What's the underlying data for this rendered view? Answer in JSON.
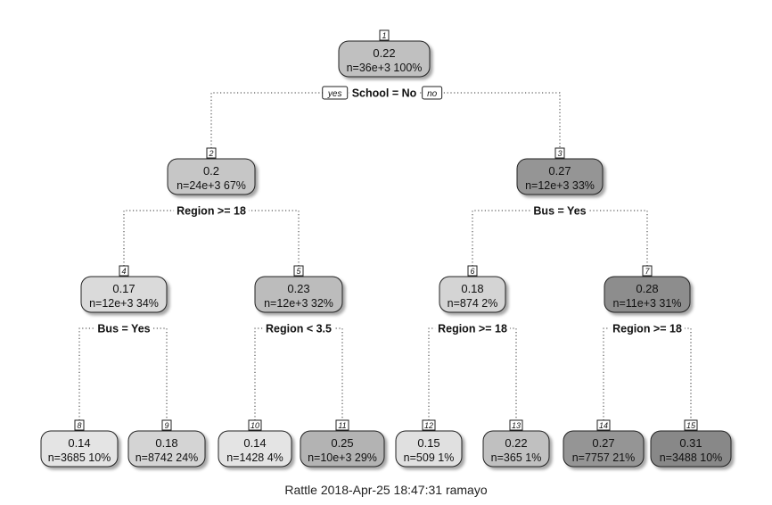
{
  "tree": {
    "nodes": [
      {
        "id": "1",
        "value": "0.22",
        "stats": "n=36e+3  100%",
        "fill": "#c0c0c0"
      },
      {
        "id": "2",
        "value": "0.2",
        "stats": "n=24e+3  67%",
        "fill": "#c6c6c6"
      },
      {
        "id": "3",
        "value": "0.27",
        "stats": "n=12e+3  33%",
        "fill": "#959595"
      },
      {
        "id": "4",
        "value": "0.17",
        "stats": "n=12e+3  34%",
        "fill": "#dadada"
      },
      {
        "id": "5",
        "value": "0.23",
        "stats": "n=12e+3  32%",
        "fill": "#bcbcbc"
      },
      {
        "id": "6",
        "value": "0.18",
        "stats": "n=874  2%",
        "fill": "#d4d4d4"
      },
      {
        "id": "7",
        "value": "0.28",
        "stats": "n=11e+3  31%",
        "fill": "#8d8d8d"
      },
      {
        "id": "8",
        "value": "0.14",
        "stats": "n=3685  10%",
        "fill": "#e4e4e4"
      },
      {
        "id": "9",
        "value": "0.18",
        "stats": "n=8742  24%",
        "fill": "#d4d4d4"
      },
      {
        "id": "10",
        "value": "0.14",
        "stats": "n=1428  4%",
        "fill": "#e4e4e4"
      },
      {
        "id": "11",
        "value": "0.25",
        "stats": "n=10e+3  29%",
        "fill": "#b3b3b3"
      },
      {
        "id": "12",
        "value": "0.15",
        "stats": "n=509  1%",
        "fill": "#e0e0e0"
      },
      {
        "id": "13",
        "value": "0.22",
        "stats": "n=365  1%",
        "fill": "#c0c0c0"
      },
      {
        "id": "14",
        "value": "0.27",
        "stats": "n=7757  21%",
        "fill": "#959595"
      },
      {
        "id": "15",
        "value": "0.31",
        "stats": "n=3488  10%",
        "fill": "#888888"
      }
    ],
    "splits": [
      {
        "node": "1",
        "label": "School = No",
        "yes": "yes",
        "no": "no"
      },
      {
        "node": "2",
        "label": "Region >= 18"
      },
      {
        "node": "3",
        "label": "Bus = Yes"
      },
      {
        "node": "4",
        "label": "Bus = Yes"
      },
      {
        "node": "5",
        "label": "Region < 3.5"
      },
      {
        "node": "6",
        "label": "Region >= 18"
      },
      {
        "node": "7",
        "label": "Region >= 18"
      }
    ]
  },
  "footer": "Rattle 2018-Apr-25 18:47:31 ramayo"
}
